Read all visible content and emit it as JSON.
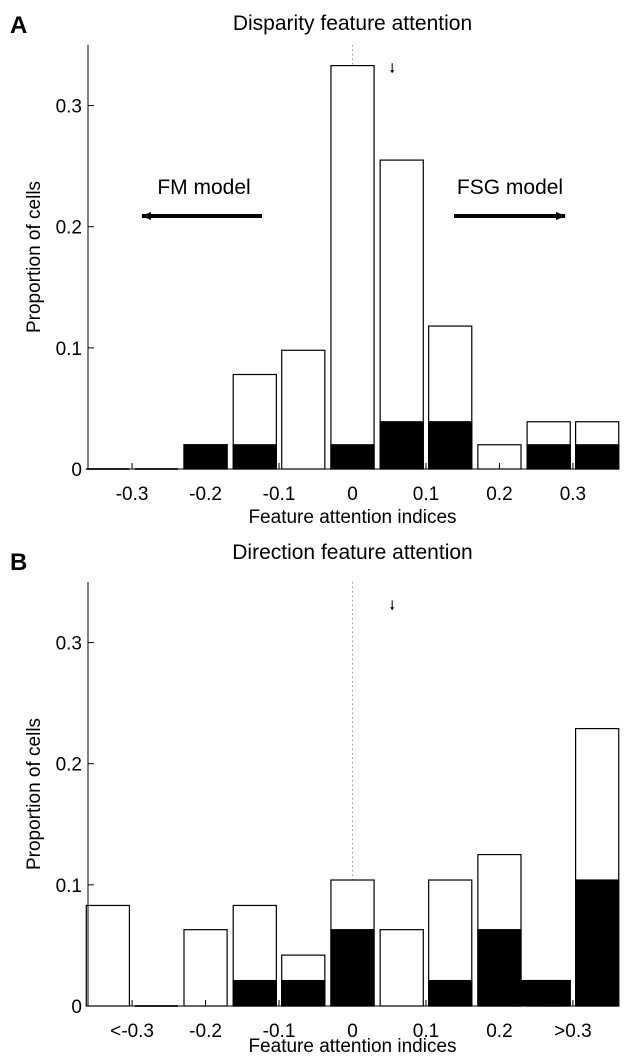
{
  "chart_data": [
    {
      "panel": "A",
      "type": "bar",
      "title": "Disparity feature attention",
      "xlabel": "Feature attention indices",
      "ylabel": "Proportion of cells",
      "x_ticks": [
        "-0.3",
        "-0.2",
        "-0.1",
        "0",
        "0.1",
        "0.2",
        "0.3"
      ],
      "x_tick_values": [
        -0.3,
        -0.2,
        -0.1,
        0,
        0.1,
        0.2,
        0.3
      ],
      "y_ticks": [
        "0",
        "0.1",
        "0.2",
        "0.3"
      ],
      "xlim": [
        -0.36,
        0.36
      ],
      "ylim": [
        0,
        0.35
      ],
      "bar_width": 0.0667,
      "centers": [
        -0.333,
        -0.267,
        -0.2,
        -0.133,
        -0.067,
        0,
        0.067,
        0.133,
        0.2,
        0.267,
        0.333
      ],
      "series": [
        {
          "name": "",
          "fill": "#ffffff",
          "values": [
            0,
            0,
            0.02,
            0.078,
            0.098,
            0.333,
            0.255,
            0.118,
            0.02,
            0.039,
            0.039
          ]
        },
        {
          "name": "",
          "fill": "#000000",
          "values": [
            0,
            0,
            0.02,
            0.02,
            0,
            0.02,
            0.039,
            0.039,
            0,
            0.02,
            0.02
          ]
        }
      ],
      "annotations": [
        {
          "text": "FM model",
          "direction": "left"
        },
        {
          "text": "FSG model",
          "direction": "right"
        }
      ],
      "median_marker": 0.054,
      "zero_line": "dotted"
    },
    {
      "panel": "B",
      "type": "bar",
      "title": "Direction feature attention",
      "xlabel": "Feature attention indices",
      "ylabel": "Proportion of cells",
      "x_ticks": [
        "<-0.3",
        "-0.2",
        "-0.1",
        "0",
        "0.1",
        "0.2",
        ">0.3"
      ],
      "x_tick_values": [
        -0.3,
        -0.2,
        -0.1,
        0,
        0.1,
        0.2,
        0.3
      ],
      "y_ticks": [
        "0",
        "0.1",
        "0.2",
        "0.3"
      ],
      "xlim": [
        -0.36,
        0.36
      ],
      "ylim": [
        0,
        0.35
      ],
      "bar_width": 0.0667,
      "centers": [
        -0.333,
        -0.267,
        -0.2,
        -0.133,
        -0.067,
        0,
        0.067,
        0.133,
        0.2,
        0.267,
        0.333
      ],
      "series": [
        {
          "name": "",
          "fill": "#ffffff",
          "values": [
            0.083,
            0,
            0.063,
            0.083,
            0.042,
            0.104,
            0.063,
            0.104,
            0.125,
            0.021,
            0.229
          ]
        },
        {
          "name": "",
          "fill": "#000000",
          "values": [
            0,
            0,
            0,
            0.021,
            0.021,
            0.063,
            0,
            0.021,
            0.063,
            0.021,
            0.104
          ]
        }
      ],
      "extra_filled_bars": [
        {
          "center": 0.233,
          "width": 0.0333,
          "value": 0.021
        },
        {
          "center": 0.267,
          "width": 0.0333,
          "value": 0.021
        }
      ],
      "median_marker": 0.054,
      "zero_line": "dotted"
    }
  ]
}
